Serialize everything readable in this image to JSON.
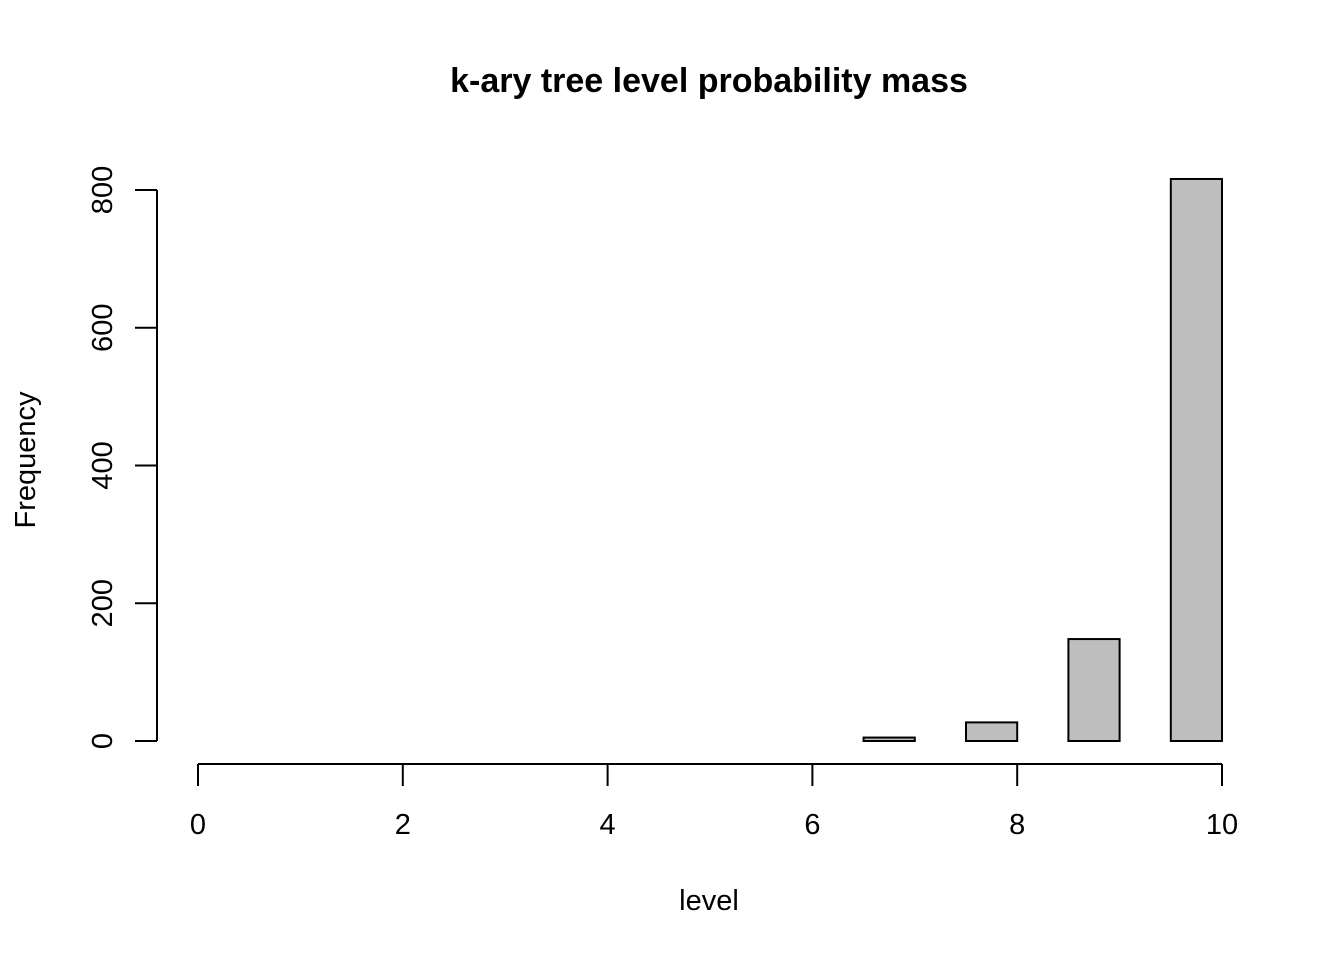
{
  "chart_data": {
    "type": "bar",
    "title": "k-ary tree level probability mass",
    "xlabel": "level",
    "ylabel": "Frequency",
    "xlim": [
      0,
      10
    ],
    "ylim": [
      0,
      800
    ],
    "x_ticks": [
      0,
      2,
      4,
      6,
      8,
      10
    ],
    "y_ticks": [
      0,
      200,
      400,
      600,
      800
    ],
    "bars": [
      {
        "left": 6.0,
        "right": 6.5,
        "value": 0
      },
      {
        "left": 6.5,
        "right": 7.0,
        "value": 5
      },
      {
        "left": 7.0,
        "right": 7.5,
        "value": 0
      },
      {
        "left": 7.5,
        "right": 8.0,
        "value": 27
      },
      {
        "left": 8.0,
        "right": 8.5,
        "value": 0
      },
      {
        "left": 8.5,
        "right": 9.0,
        "value": 148
      },
      {
        "left": 9.0,
        "right": 9.5,
        "value": 0
      },
      {
        "left": 9.5,
        "right": 10.0,
        "value": 816
      }
    ],
    "bar_color": "#bebebe",
    "grid": false,
    "legend": "none"
  }
}
